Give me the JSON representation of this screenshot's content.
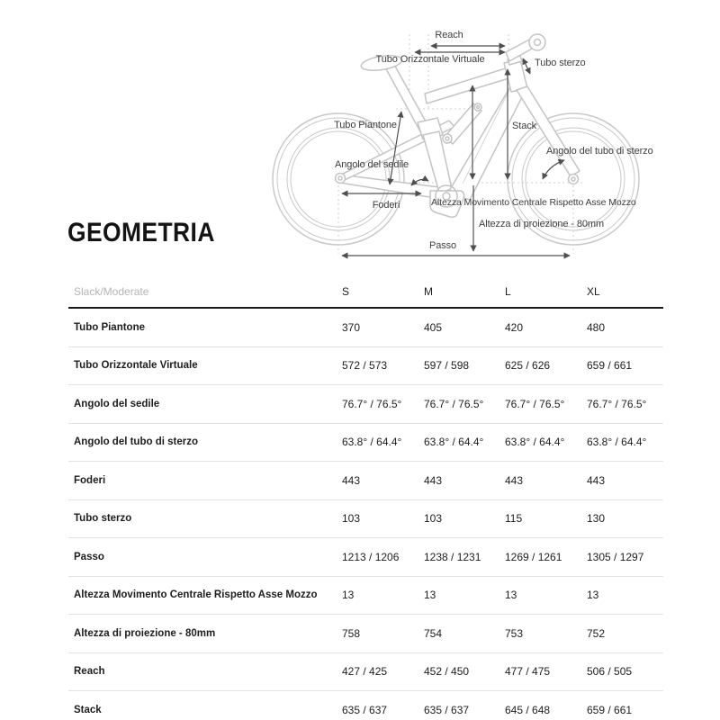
{
  "title": "GEOMETRIA",
  "diagram": {
    "labels": {
      "reach": "Reach",
      "tubo_orizzontale_virtuale": "Tubo Orizzontale Virtuale",
      "tubo_sterzo": "Tubo sterzo",
      "tubo_piantone": "Tubo Piantone",
      "stack": "Stack",
      "angolo_del_sedile": "Angolo del sedile",
      "angolo_del_tubo_di_sterzo": "Angolo del tubo di sterzo",
      "foderi": "Foderi",
      "altezza_movimento_centrale": "Altezza Movimento Centrale Rispetto Asse Mozzo",
      "altezza_di_proiezione": "Altezza di proiezione - 80mm",
      "passo": "Passo"
    }
  },
  "table": {
    "mode_label": "Slack/Moderate",
    "columns": [
      "S",
      "M",
      "L",
      "XL"
    ],
    "rows": [
      {
        "label": "Tubo Piantone",
        "values": [
          "370",
          "405",
          "420",
          "480"
        ]
      },
      {
        "label": "Tubo Orizzontale Virtuale",
        "values": [
          "572 / 573",
          "597 / 598",
          "625 / 626",
          "659 / 661"
        ]
      },
      {
        "label": "Angolo del sedile",
        "values": [
          "76.7° / 76.5°",
          "76.7° / 76.5°",
          "76.7° / 76.5°",
          "76.7° / 76.5°"
        ]
      },
      {
        "label": "Angolo del tubo di sterzo",
        "values": [
          "63.8° / 64.4°",
          "63.8° / 64.4°",
          "63.8° / 64.4°",
          "63.8° / 64.4°"
        ]
      },
      {
        "label": "Foderi",
        "values": [
          "443",
          "443",
          "443",
          "443"
        ]
      },
      {
        "label": "Tubo sterzo",
        "values": [
          "103",
          "103",
          "115",
          "130"
        ]
      },
      {
        "label": "Passo",
        "values": [
          "1213 / 1206",
          "1238 / 1231",
          "1269 / 1261",
          "1305 / 1297"
        ]
      },
      {
        "label": "Altezza Movimento Centrale Rispetto Asse Mozzo",
        "values": [
          "13",
          "13",
          "13",
          "13"
        ]
      },
      {
        "label": "Altezza di proiezione - 80mm",
        "values": [
          "758",
          "754",
          "753",
          "752"
        ]
      },
      {
        "label": "Reach",
        "values": [
          "427 / 425",
          "452 / 450",
          "477 / 475",
          "506 / 505"
        ]
      },
      {
        "label": "Stack",
        "values": [
          "635 / 637",
          "635 / 637",
          "645 / 648",
          "659 / 661"
        ]
      }
    ]
  },
  "colors": {
    "text": "#1d1d1d",
    "muted_header": "#b5b5b5",
    "divider": "#e3e3e3",
    "header_rule": "#1a1a1a",
    "diagram_line": "#c7c7c7",
    "diagram_arrow": "#4f4f4f",
    "diagram_text": "#3d3d3d",
    "background": "#ffffff"
  }
}
